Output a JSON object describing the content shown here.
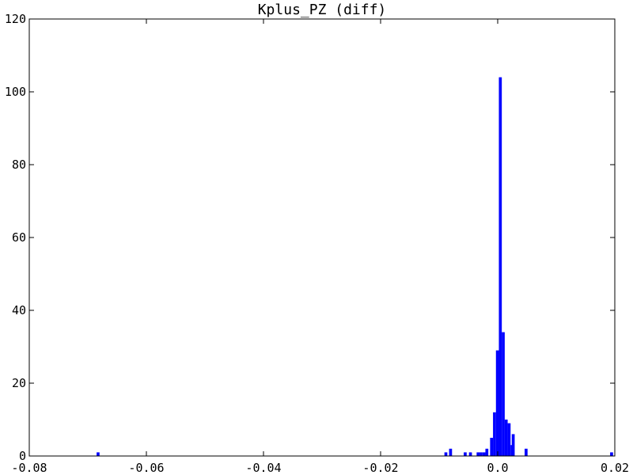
{
  "chart_data": {
    "type": "bar",
    "title": "Kplus_PZ (diff)",
    "xlabel": "",
    "ylabel": "",
    "xlim": [
      -0.08,
      0.02
    ],
    "ylim": [
      0,
      120
    ],
    "xticks": [
      "-0.08",
      "-0.06",
      "-0.04",
      "-0.02",
      "0.0",
      "0.02"
    ],
    "yticks": [
      "0",
      "20",
      "40",
      "60",
      "80",
      "100",
      "120"
    ],
    "grid": false,
    "bar_color": "#0000ff",
    "bin_width": 0.0005,
    "bins": [
      {
        "x": -0.0685,
        "count": 1
      },
      {
        "x": -0.0091,
        "count": 1
      },
      {
        "x": -0.0083,
        "count": 2
      },
      {
        "x": -0.0058,
        "count": 1
      },
      {
        "x": -0.0049,
        "count": 1
      },
      {
        "x": -0.0036,
        "count": 1
      },
      {
        "x": -0.0031,
        "count": 1
      },
      {
        "x": -0.0026,
        "count": 1
      },
      {
        "x": -0.0021,
        "count": 2
      },
      {
        "x": -0.0013,
        "count": 5
      },
      {
        "x": -0.0008,
        "count": 12
      },
      {
        "x": -0.0003,
        "count": 29
      },
      {
        "x": 0.0002,
        "count": 104
      },
      {
        "x": 0.0007,
        "count": 34
      },
      {
        "x": 0.0012,
        "count": 10
      },
      {
        "x": 0.0017,
        "count": 9
      },
      {
        "x": 0.0022,
        "count": 3
      },
      {
        "x": 0.0024,
        "count": 6
      },
      {
        "x": 0.0046,
        "count": 2
      },
      {
        "x": 0.0192,
        "count": 1
      }
    ]
  }
}
